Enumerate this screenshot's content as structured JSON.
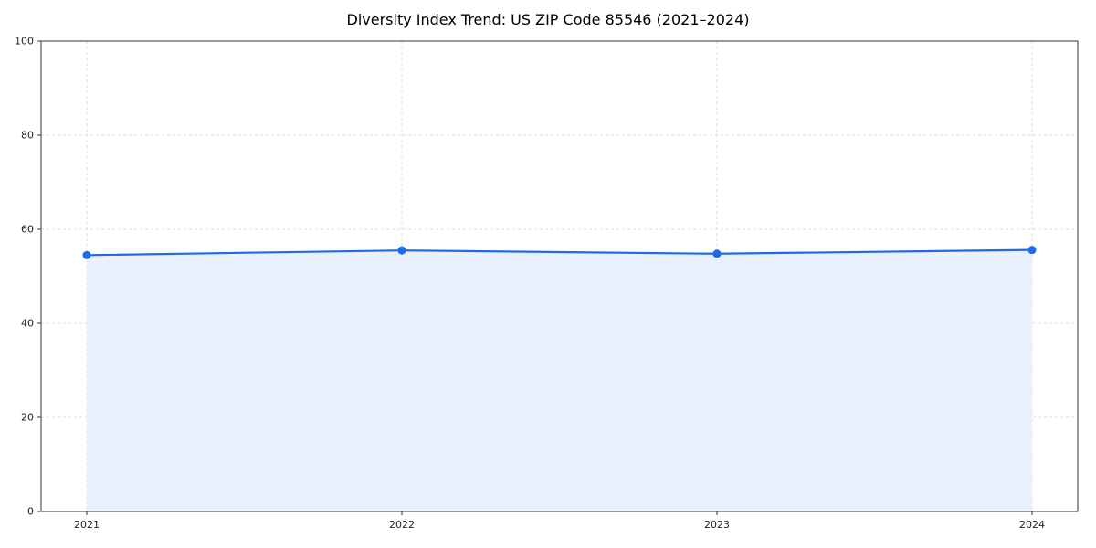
{
  "page": {
    "title": "Diversity Index Trend: US ZIP Code 85546 (2021–2024)"
  },
  "chart_data": {
    "type": "area",
    "title": "Diversity Index Trend: US ZIP Code 85546 (2021–2024)",
    "x": [
      "2021",
      "2022",
      "2023",
      "2024"
    ],
    "series": [
      {
        "name": "Diversity Index",
        "values": [
          54.5,
          55.5,
          54.8,
          55.6
        ]
      }
    ],
    "xlabel": "",
    "ylabel": "",
    "ylim": [
      0,
      100
    ],
    "yticks": [
      0,
      20,
      40,
      60,
      80,
      100
    ],
    "grid": true,
    "grid_style": "dashed",
    "legend_position": "none",
    "line_color": "#1f6be6",
    "fill_color": "#e8f1fd",
    "grid_color": "#dcdcdc",
    "spine_color": "#333333",
    "tick_label_color": "#222222"
  }
}
